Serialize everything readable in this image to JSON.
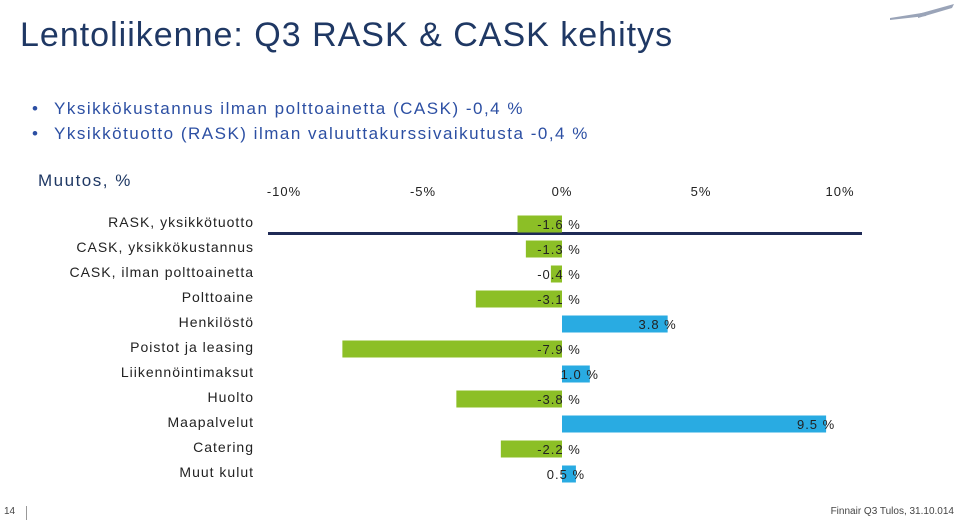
{
  "title": "Lentoliikenne: Q3 RASK & CASK kehitys",
  "bullets": [
    "Yksikkökustannus ilman polttoainetta (CASK) -0,4 %",
    "Yksikkötuotto (RASK) ilman valuuttakurssivaikutusta -0,4 %"
  ],
  "footer": {
    "page_number": "14",
    "source": "Finnair Q3 Tulos, 31.10.014"
  },
  "colors": {
    "title": "#1f3864",
    "bullet": "#2c4fa3",
    "negative": "#8cbf26",
    "positive": "#29abe2",
    "separator": "#1f2a56"
  },
  "chart_data": {
    "type": "bar",
    "orientation": "horizontal",
    "unit_label": "Muutos, %",
    "xlim": [
      -10,
      10
    ],
    "x_ticks": [
      "-10%",
      "-5%",
      "0%",
      "5%",
      "10%"
    ],
    "x_tick_values": [
      -10,
      -5,
      0,
      5,
      10
    ],
    "categories": [
      "RASK, yksikkötuotto",
      "CASK, yksikkökustannus",
      "CASK, ilman polttoainetta",
      "Polttoaine",
      "Henkilöstö",
      "Poistot ja leasing",
      "Liikennöintimaksut",
      "Huolto",
      "Maapalvelut",
      "Catering",
      "Muut kulut"
    ],
    "values": [
      -1.6,
      -1.3,
      -0.4,
      -3.1,
      3.8,
      -7.9,
      1.0,
      -3.8,
      9.5,
      -2.2,
      0.5
    ],
    "data_labels": [
      "-1.6 %",
      "-1.3 %",
      "-0.4 %",
      "-3.1 %",
      "3.8 %",
      "-7.9 %",
      "1.0 %",
      "-3.8 %",
      "9.5 %",
      "-2.2 %",
      "0.5 %"
    ],
    "legend": "none",
    "grid": false
  }
}
